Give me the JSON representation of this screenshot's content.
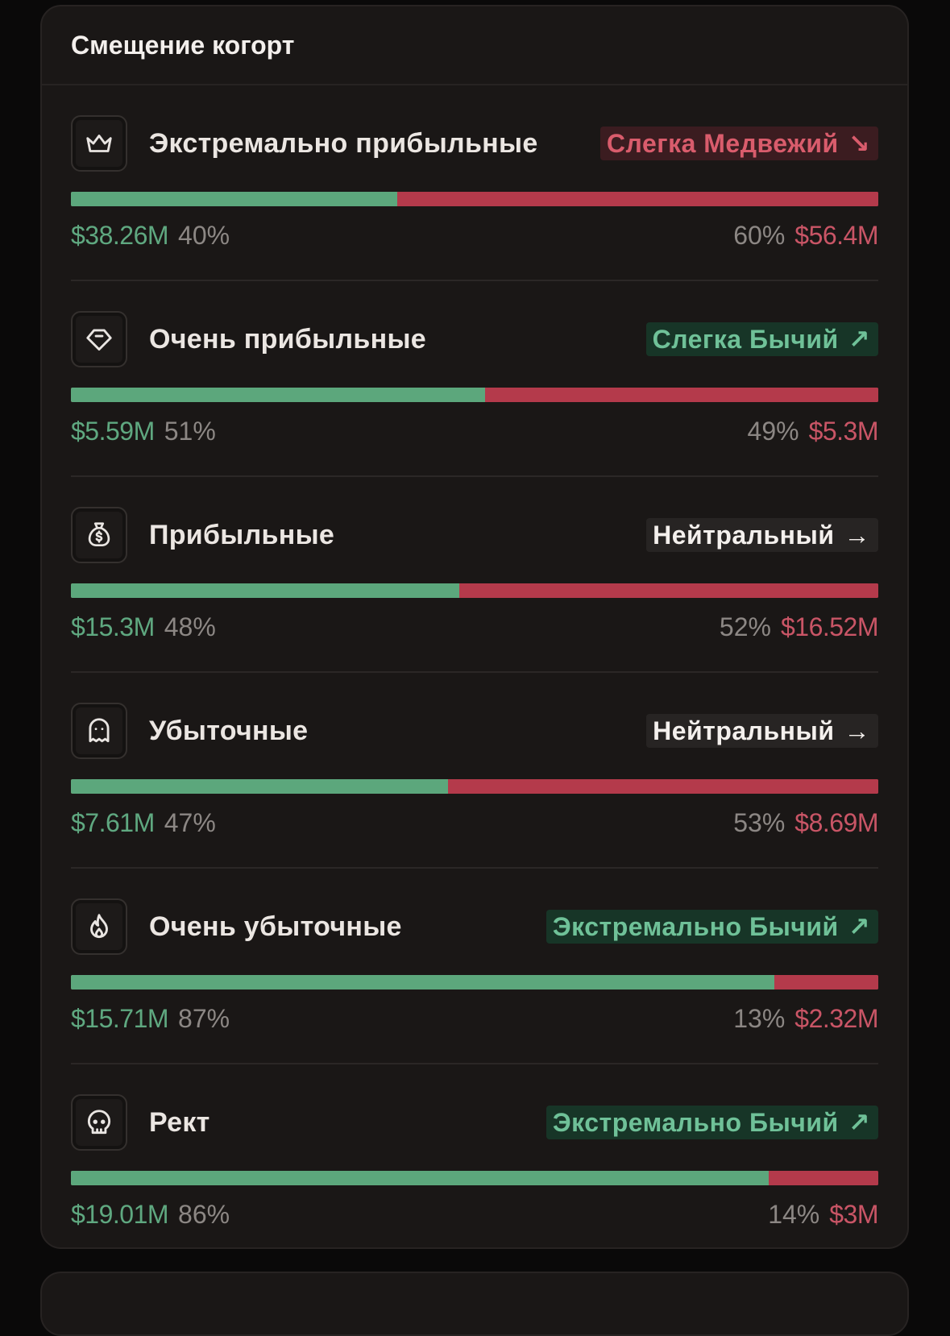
{
  "card": {
    "title": "Смещение когорт"
  },
  "colors": {
    "green": "#5ca77c",
    "red": "#b43a4b",
    "bull_badge_bg": "#173527",
    "bear_badge_bg": "#3b1c20",
    "neutral_badge_bg": "#272423"
  },
  "cohorts": [
    {
      "name": "Экстремально прибыльные",
      "icon": "crown-icon",
      "badge": "Слегка Медвежий",
      "badge_arrow": "↘",
      "sentiment": "bear",
      "green_amount": "$38.26M",
      "green_pct": "40%",
      "red_pct": "60%",
      "red_amount": "$56.4M",
      "green_share": 40.4
    },
    {
      "name": "Очень прибыльные",
      "icon": "diamond-icon",
      "badge": "Слегка Бычий",
      "badge_arrow": "↗",
      "sentiment": "bull",
      "green_amount": "$5.59M",
      "green_pct": "51%",
      "red_pct": "49%",
      "red_amount": "$5.3M",
      "green_share": 51.3
    },
    {
      "name": "Прибыльные",
      "icon": "money-bag-icon",
      "badge": "Нейтральный",
      "badge_arrow": "→",
      "sentiment": "neutral",
      "green_amount": "$15.3M",
      "green_pct": "48%",
      "red_pct": "52%",
      "red_amount": "$16.52M",
      "green_share": 48.1
    },
    {
      "name": "Убыточные",
      "icon": "ghost-icon",
      "badge": "Нейтральный",
      "badge_arrow": "→",
      "sentiment": "neutral",
      "green_amount": "$7.61M",
      "green_pct": "47%",
      "red_pct": "53%",
      "red_amount": "$8.69M",
      "green_share": 46.7
    },
    {
      "name": "Очень убыточные",
      "icon": "flame-icon",
      "badge": "Экстремально Бычий",
      "badge_arrow": "↗",
      "sentiment": "bull",
      "green_amount": "$15.71M",
      "green_pct": "87%",
      "red_pct": "13%",
      "red_amount": "$2.32M",
      "green_share": 87.1
    },
    {
      "name": "Рект",
      "icon": "skull-icon",
      "badge": "Экстремально Бычий",
      "badge_arrow": "↗",
      "sentiment": "bull",
      "green_amount": "$19.01M",
      "green_pct": "86%",
      "red_pct": "14%",
      "red_amount": "$3M",
      "green_share": 86.4
    }
  ]
}
